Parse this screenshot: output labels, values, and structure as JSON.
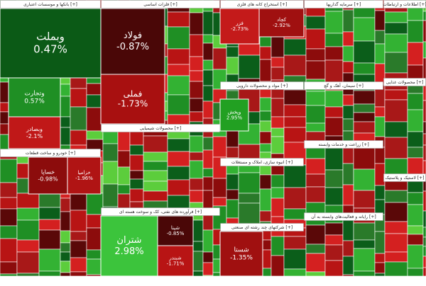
{
  "sectors": [
    {
      "title": "بانکها و موسسات اعتباری [+]",
      "tiles": [
        {
          "name": "وبملت",
          "change": "0.47%"
        },
        {
          "name": "وتجارت",
          "change": "0.57%"
        },
        {
          "name": "وبصادر",
          "change": "-2.1%"
        }
      ]
    },
    {
      "title": "خودرو و ساخت قطعات [+]",
      "tiles": [
        {
          "name": "خساپا",
          "change": "-0.98%"
        },
        {
          "name": "خزامیا",
          "change": "-1.96%"
        }
      ]
    },
    {
      "title": "فلزات اساسی [+]",
      "tiles": [
        {
          "name": "فولاد",
          "change": "-0.87%"
        },
        {
          "name": "فملی",
          "change": "-1.73%"
        }
      ]
    },
    {
      "title": "محصولات شیمیایی [+]"
    },
    {
      "title": "فرآورده های نفتی، کک و سوخت هسته ای [+]",
      "tiles": [
        {
          "name": "شتران",
          "change": "2.98%"
        },
        {
          "name": "شپنا",
          "change": "-0.85%"
        },
        {
          "name": "شبندر",
          "change": "-1.71%"
        }
      ]
    },
    {
      "title": "استخراج کانه های فلزی [+]",
      "tiles": [
        {
          "name": "فزر",
          "change": "-2.73%"
        },
        {
          "name": "کچاد",
          "change": "-2.92%"
        }
      ]
    },
    {
      "title": "مواد و محصولات دارویی [+]",
      "tiles": [
        {
          "name": "وپخش",
          "change": "2.95%"
        }
      ]
    },
    {
      "title": "انبوه سازی، املاک و مستغلات [+]"
    },
    {
      "title": "شرکتهای چند رشته ای صنعتی [+]",
      "tiles": [
        {
          "name": "شستا",
          "change": "-1.35%"
        }
      ]
    },
    {
      "title": "سرمایه گذاریها [+]"
    },
    {
      "title": "سیمان، آهک و گچ [+]"
    },
    {
      "title": "زراعت و خدمات وابسته [+]"
    },
    {
      "title": "رایانه و فعالیت‌های وابسته به آن [+]"
    },
    {
      "title": "اطلاعات و ارتباطات [+]"
    },
    {
      "title": "محصولات غذایی [+]"
    },
    {
      "title": "لاستیک و پلاستیک [+]"
    }
  ]
}
